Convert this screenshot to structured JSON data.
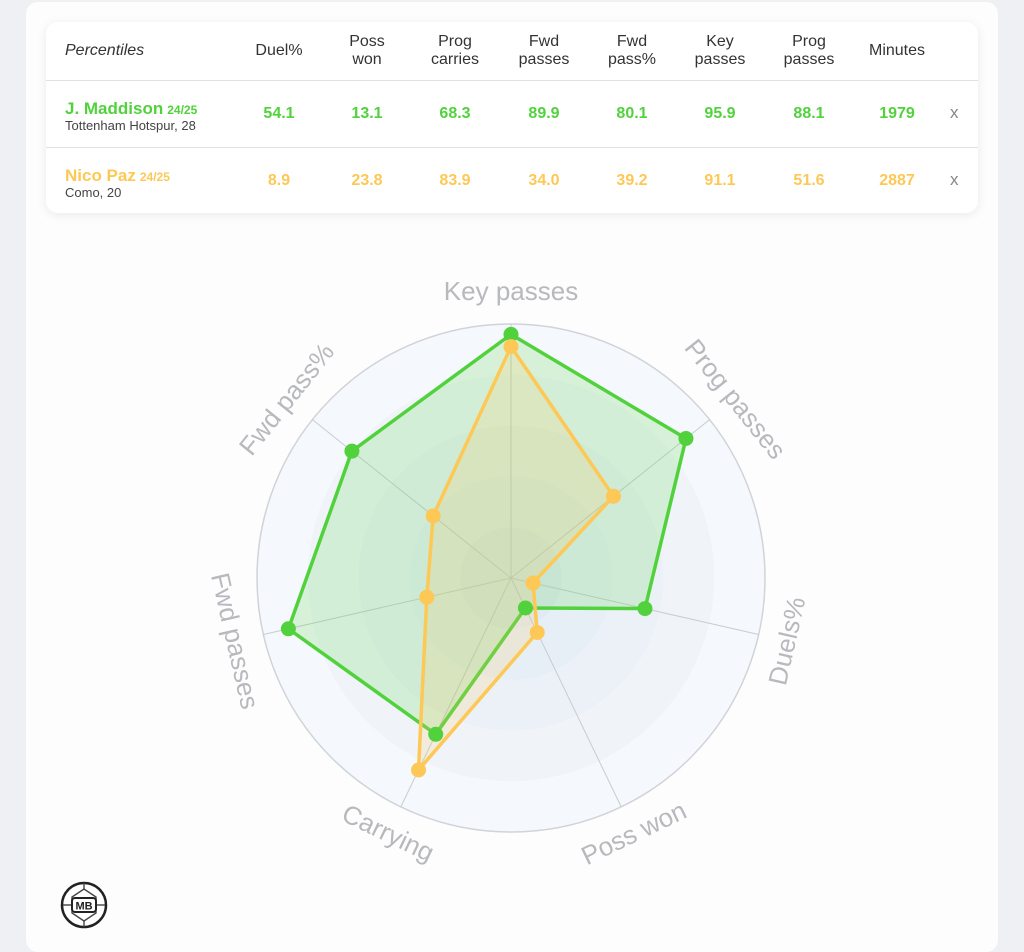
{
  "table": {
    "headers": [
      "Percentiles",
      "Duel%",
      "Poss\nwon",
      "Prog\ncarries",
      "Fwd\npasses",
      "Fwd\npass%",
      "Key\npasses",
      "Prog\npasses",
      "Minutes"
    ],
    "remove_label": "x",
    "players": [
      {
        "name": "J. Maddison",
        "season": "24/25",
        "club": "Tottenham Hotspur, 28",
        "color": "#51d23c",
        "values": [
          "54.1",
          "13.1",
          "68.3",
          "89.9",
          "80.1",
          "95.9",
          "88.1",
          "1979"
        ]
      },
      {
        "name": "Nico Paz",
        "season": "24/25",
        "club": "Como, 20",
        "color": "#fdc856",
        "values": [
          "8.9",
          "23.8",
          "83.9",
          "34.0",
          "39.2",
          "91.1",
          "51.6",
          "2887"
        ]
      }
    ]
  },
  "logo": {
    "text": "MB"
  },
  "chart_data": {
    "type": "radar",
    "axes": [
      "Key passes",
      "Prog passes",
      "Duels%",
      "Poss won",
      "Carrying",
      "Fwd passes",
      "Fwd pass%"
    ],
    "range": [
      0,
      100
    ],
    "series": [
      {
        "name": "J. Maddison",
        "color": "#51d23c",
        "values": [
          95.9,
          88.1,
          54.1,
          13.1,
          68.3,
          89.9,
          80.1
        ]
      },
      {
        "name": "Nico Paz",
        "color": "#fdc856",
        "values": [
          91.1,
          51.6,
          8.9,
          23.8,
          83.9,
          34.0,
          39.2
        ]
      }
    ]
  }
}
